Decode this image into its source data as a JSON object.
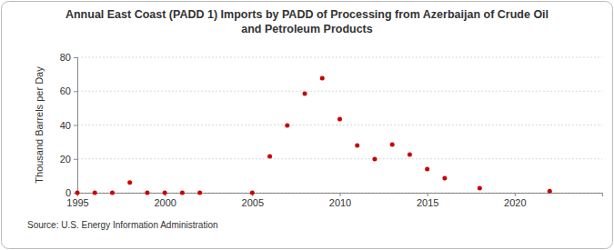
{
  "chart_data": {
    "type": "scatter",
    "title": "Annual East Coast (PADD 1) Imports by PADD of Processing from Azerbaijan of Crude Oil and Petroleum Products",
    "y_label": "Thousand Barrels per Day",
    "source": "Source: U.S. Energy Information Administration",
    "x": [
      1995,
      1996,
      1997,
      1998,
      1999,
      2000,
      2001,
      2002,
      2005,
      2006,
      2007,
      2008,
      2009,
      2010,
      2011,
      2012,
      2013,
      2014,
      2015,
      2016,
      2018,
      2022
    ],
    "values": [
      0,
      0,
      0,
      6,
      0,
      0,
      0,
      0,
      0,
      21.5,
      39.7,
      58.5,
      67.7,
      43.5,
      27.9,
      19.9,
      28.5,
      22.5,
      14,
      8.6,
      2.7,
      1
    ],
    "color": "#cc0000",
    "marker": "circle",
    "xlim": [
      1995,
      2025
    ],
    "xticks": [
      1995,
      2000,
      2005,
      2010,
      2015,
      2020
    ],
    "ylim": [
      0,
      80
    ],
    "yticks": [
      0,
      20,
      40,
      60,
      80
    ],
    "grid": true
  }
}
